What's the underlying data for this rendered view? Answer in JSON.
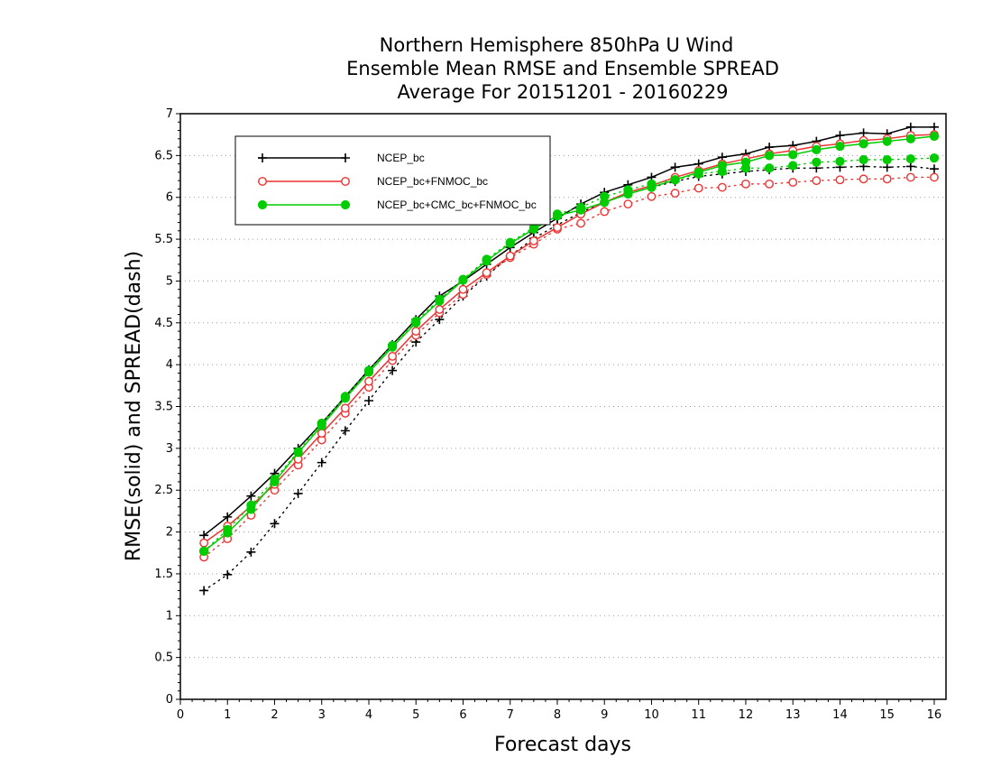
{
  "chart_data": {
    "type": "line",
    "title": [
      "Northern Hemisphere 850hPa U Wind",
      "Ensemble Mean RMSE and Ensemble SPREAD",
      "Average For 20151201 - 20160229"
    ],
    "xlabel": "Forecast days",
    "ylabel": "RMSE(solid) and SPREAD(dash)",
    "xlim": [
      0,
      16.25
    ],
    "ylim": [
      0,
      7
    ],
    "xticks": [
      "0",
      "1",
      "2",
      "3",
      "4",
      "5",
      "6",
      "7",
      "8",
      "9",
      "10",
      "11",
      "12",
      "13",
      "14",
      "15",
      "16"
    ],
    "yticks": [
      "0",
      "0.5",
      "1",
      "1.5",
      "2",
      "2.5",
      "3",
      "3.5",
      "4",
      "4.5",
      "5",
      "5.5",
      "6",
      "6.5",
      "7"
    ],
    "grid": "horizontal dotted",
    "legend_position": "top-left",
    "x": [
      0.5,
      1,
      1.5,
      2,
      2.5,
      3,
      3.5,
      4,
      4.5,
      5,
      5.5,
      6,
      6.5,
      7,
      7.5,
      8,
      8.5,
      9,
      9.5,
      10,
      10.5,
      11,
      11.5,
      12,
      12.5,
      13,
      13.5,
      14,
      14.5,
      15,
      15.5,
      16
    ],
    "series": [
      {
        "name": "NCEP_bc",
        "color": "#000000",
        "marker": "plus",
        "rmse": [
          1.96,
          2.18,
          2.43,
          2.7,
          3.0,
          3.3,
          3.62,
          3.94,
          4.24,
          4.54,
          4.82,
          5.0,
          5.2,
          5.4,
          5.58,
          5.75,
          5.92,
          6.06,
          6.15,
          6.24,
          6.36,
          6.4,
          6.48,
          6.52,
          6.6,
          6.62,
          6.67,
          6.74,
          6.77,
          6.76,
          6.84,
          6.84
        ],
        "spread": [
          1.3,
          1.49,
          1.76,
          2.1,
          2.46,
          2.83,
          3.21,
          3.57,
          3.93,
          4.27,
          4.54,
          4.82,
          5.06,
          5.3,
          5.51,
          5.67,
          5.82,
          5.94,
          6.04,
          6.12,
          6.19,
          6.25,
          6.28,
          6.31,
          6.33,
          6.35,
          6.35,
          6.36,
          6.37,
          6.36,
          6.37,
          6.34
        ]
      },
      {
        "name": "NCEP_bc+FNMOC_bc",
        "color": "#ee3333",
        "marker": "circle-open",
        "rmse": [
          1.87,
          2.07,
          2.31,
          2.57,
          2.87,
          3.18,
          3.48,
          3.8,
          4.1,
          4.4,
          4.66,
          4.9,
          5.1,
          5.3,
          5.48,
          5.64,
          5.8,
          5.94,
          6.06,
          6.14,
          6.24,
          6.32,
          6.4,
          6.46,
          6.52,
          6.56,
          6.61,
          6.64,
          6.68,
          6.7,
          6.74,
          6.75
        ],
        "spread": [
          1.7,
          1.92,
          2.2,
          2.5,
          2.8,
          3.1,
          3.42,
          3.73,
          4.05,
          4.35,
          4.62,
          4.84,
          5.08,
          5.28,
          5.44,
          5.62,
          5.69,
          5.83,
          5.92,
          6.01,
          6.05,
          6.11,
          6.12,
          6.16,
          6.16,
          6.18,
          6.2,
          6.21,
          6.22,
          6.22,
          6.24,
          6.24
        ]
      },
      {
        "name": "NCEP_bc+CMC_bc+FNMOC_bc",
        "color": "#00cc00",
        "marker": "circle-filled",
        "rmse": [
          1.77,
          1.99,
          2.27,
          2.6,
          2.95,
          3.27,
          3.6,
          3.91,
          4.21,
          4.5,
          4.76,
          5.01,
          5.24,
          5.45,
          5.62,
          5.78,
          5.85,
          5.94,
          6.04,
          6.12,
          6.21,
          6.3,
          6.38,
          6.42,
          6.5,
          6.51,
          6.57,
          6.61,
          6.64,
          6.67,
          6.7,
          6.73
        ],
        "spread": [
          1.77,
          2.03,
          2.32,
          2.63,
          2.96,
          3.3,
          3.62,
          3.93,
          4.23,
          4.52,
          4.78,
          5.02,
          5.26,
          5.46,
          5.64,
          5.8,
          5.88,
          6.01,
          6.09,
          6.16,
          6.21,
          6.28,
          6.31,
          6.35,
          6.35,
          6.38,
          6.42,
          6.43,
          6.45,
          6.45,
          6.46,
          6.47
        ]
      }
    ]
  }
}
